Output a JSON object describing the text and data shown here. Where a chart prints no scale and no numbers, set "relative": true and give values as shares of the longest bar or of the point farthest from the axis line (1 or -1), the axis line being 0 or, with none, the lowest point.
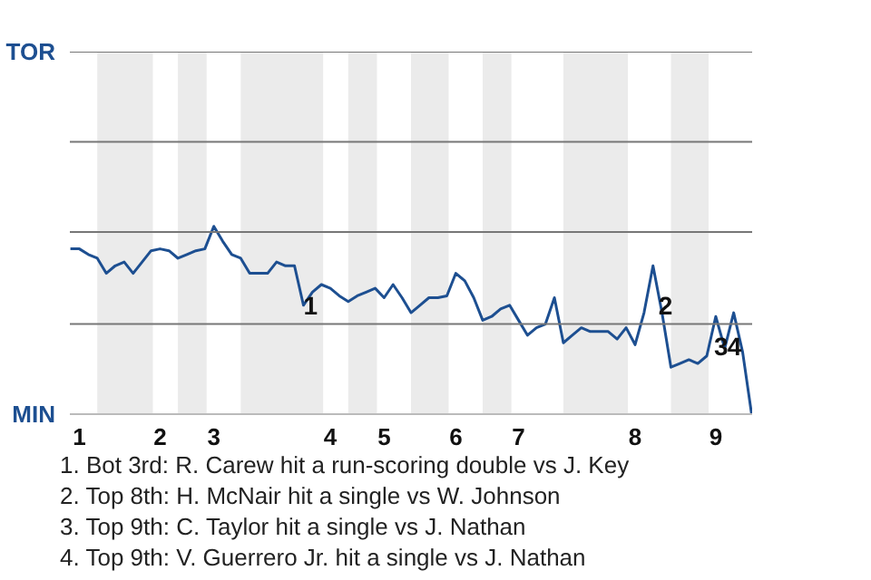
{
  "chart_data": {
    "type": "line",
    "relative": true,
    "categories": [
      null,
      "1",
      null,
      null,
      null,
      null,
      null,
      null,
      null,
      null,
      "2",
      null,
      null,
      null,
      null,
      null,
      "3",
      null,
      null,
      null,
      null,
      null,
      null,
      null,
      null,
      null,
      null,
      null,
      null,
      "4",
      null,
      null,
      null,
      null,
      null,
      "5",
      null,
      null,
      null,
      null,
      null,
      null,
      null,
      "6",
      null,
      null,
      null,
      null,
      null,
      null,
      "7",
      null,
      null,
      null,
      null,
      null,
      null,
      null,
      null,
      null,
      null,
      null,
      null,
      "8",
      null,
      null,
      null,
      null,
      null,
      null,
      null,
      null,
      "9",
      null,
      null,
      null,
      null
    ],
    "series": [
      {
        "color": "#1d4f91",
        "values": [
          0.88,
          0.88,
          0.85,
          0.83,
          0.75,
          0.79,
          0.81,
          0.75,
          0.81,
          0.87,
          0.88,
          0.87,
          0.83,
          0.85,
          0.87,
          0.88,
          1,
          0.92,
          0.85,
          0.83,
          0.75,
          0.75,
          0.75,
          0.81,
          0.79,
          0.79,
          0.58,
          0.65,
          0.69,
          0.67,
          0.63,
          0.6,
          0.63,
          0.65,
          0.67,
          0.62,
          0.69,
          0.62,
          0.54,
          0.58,
          0.62,
          0.62,
          0.63,
          0.75,
          0.71,
          0.62,
          0.5,
          0.52,
          0.56,
          0.58,
          0.5,
          0.42,
          0.46,
          0.48,
          0.62,
          0.38,
          0.42,
          0.46,
          0.44,
          0.44,
          0.44,
          0.4,
          0.46,
          0.37,
          0.54,
          0.79,
          0.54,
          0.25,
          0.27,
          0.29,
          0.27,
          0.31,
          0.52,
          0.35,
          0.54,
          0.33,
          0
        ]
      }
    ],
    "ref_lines": [
      {
        "axis": "y",
        "value": 0.48,
        "color": "#777777"
      },
      {
        "axis": "y",
        "value": 0.97,
        "color": "#777777"
      },
      {
        "axis": "y",
        "value": 1.45,
        "color": "#777777"
      },
      {
        "axis": "y",
        "value": 1.93,
        "color": "#777777"
      }
    ],
    "annotations": [
      "TOR",
      "MIN",
      "1",
      "2",
      "3",
      "4",
      "1. Bot 3rd: R. Carew hit a run-scoring double vs J. Key",
      "2. Top 8th: H. McNair hit a single vs W. Johnson",
      "3. Top 9th: C. Taylor hit a single vs J. Nathan",
      "4. Top 9th: V. Guerrero Jr. hit a single vs J. Nathan"
    ]
  }
}
